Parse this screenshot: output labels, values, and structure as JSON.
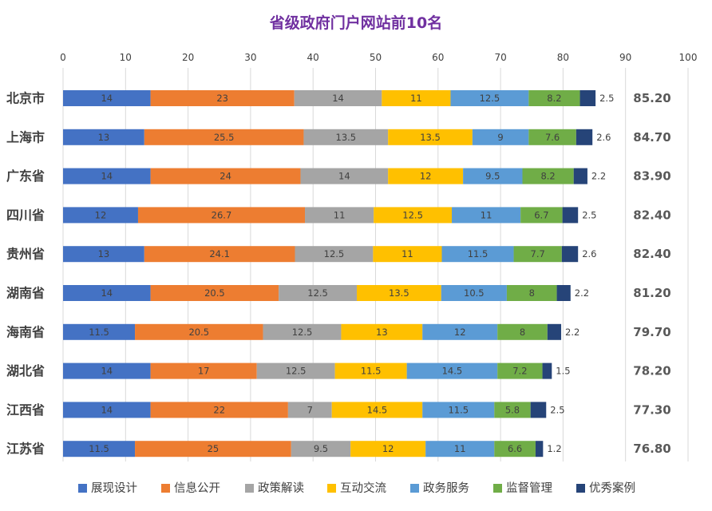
{
  "chart_data": {
    "type": "bar",
    "orientation": "horizontal",
    "stacked": true,
    "title": "省级政府门户网站前10名",
    "xlim": [
      0,
      100
    ],
    "x_ticks": [
      "0",
      "10",
      "20",
      "30",
      "40",
      "50",
      "60",
      "70",
      "80",
      "90",
      "100"
    ],
    "grid": true,
    "legend_position": "bottom",
    "categories": [
      "北京市",
      "上海市",
      "广东省",
      "四川省",
      "贵州省",
      "湖南省",
      "海南省",
      "湖北省",
      "江西省",
      "江苏省"
    ],
    "totals": [
      "85.20",
      "84.70",
      "83.90",
      "82.40",
      "82.40",
      "81.20",
      "79.70",
      "78.20",
      "77.30",
      "76.80"
    ],
    "series": [
      {
        "name": "展现设计",
        "color": "#4472c4",
        "values": [
          14,
          13,
          14,
          12,
          13,
          14,
          11.5,
          14,
          14,
          11.5
        ]
      },
      {
        "name": "信息公开",
        "color": "#ed7d31",
        "values": [
          23,
          25.5,
          24,
          26.7,
          24.1,
          20.5,
          20.5,
          17,
          22,
          25
        ]
      },
      {
        "name": "政策解读",
        "color": "#a5a5a5",
        "values": [
          14,
          13.5,
          14,
          11,
          12.5,
          12.5,
          12.5,
          12.5,
          7,
          9.5
        ]
      },
      {
        "name": "互动交流",
        "color": "#ffc000",
        "values": [
          11,
          13.5,
          12,
          12.5,
          11,
          13.5,
          13,
          11.5,
          14.5,
          12
        ]
      },
      {
        "name": "政务服务",
        "color": "#5b9bd5",
        "values": [
          12.5,
          9,
          9.5,
          11,
          11.5,
          10.5,
          12,
          14.5,
          11.5,
          11
        ]
      },
      {
        "name": "监督管理",
        "color": "#70ad47",
        "values": [
          8.2,
          7.6,
          8.2,
          6.7,
          7.7,
          8,
          8,
          7.2,
          5.8,
          6.6
        ]
      },
      {
        "name": "优秀案例",
        "color": "#264478",
        "values": [
          2.5,
          2.6,
          2.2,
          2.5,
          2.6,
          2.2,
          2.2,
          1.5,
          2.5,
          1.2
        ]
      }
    ]
  }
}
